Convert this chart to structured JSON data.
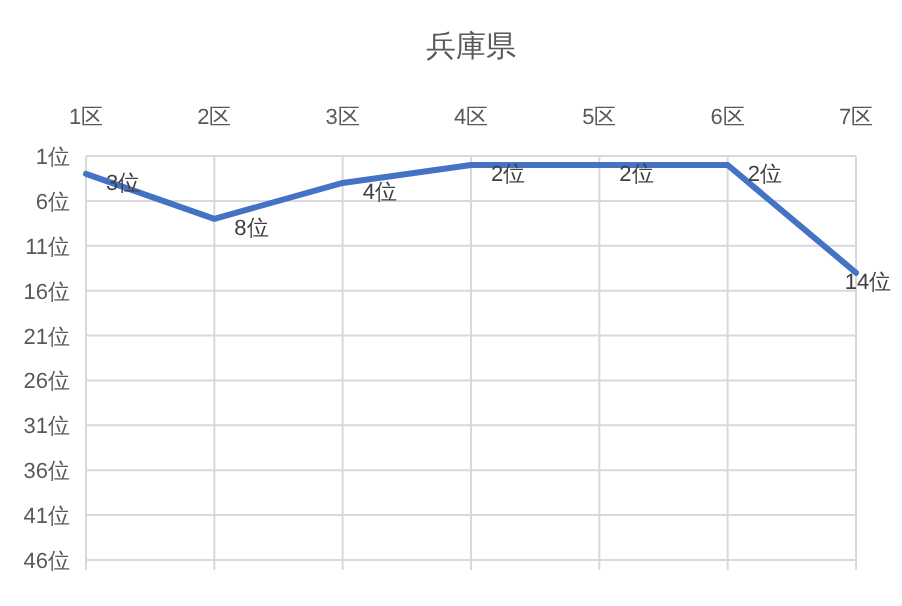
{
  "chart_data": {
    "type": "line",
    "title": "兵庫県",
    "categories": [
      "1区",
      "2区",
      "3区",
      "4区",
      "5区",
      "6区",
      "7区"
    ],
    "series": [
      {
        "color": "#4472c4",
        "values": [
          3,
          8,
          4,
          2,
          2,
          2,
          14
        ],
        "value_labels": [
          "3位",
          "8位",
          "4位",
          "2位",
          "2位",
          "2位",
          "14位"
        ]
      }
    ],
    "ylim": [
      46,
      1
    ],
    "yticks": [
      {
        "value": 1,
        "label": "1位"
      },
      {
        "value": 6,
        "label": "6位"
      },
      {
        "value": 11,
        "label": "11位"
      },
      {
        "value": 16,
        "label": "16位"
      },
      {
        "value": 21,
        "label": "21位"
      },
      {
        "value": 26,
        "label": "26位"
      },
      {
        "value": 31,
        "label": "31位"
      },
      {
        "value": 36,
        "label": "36位"
      },
      {
        "value": 41,
        "label": "41位"
      },
      {
        "value": 46,
        "label": "46位"
      }
    ],
    "grid": true
  }
}
